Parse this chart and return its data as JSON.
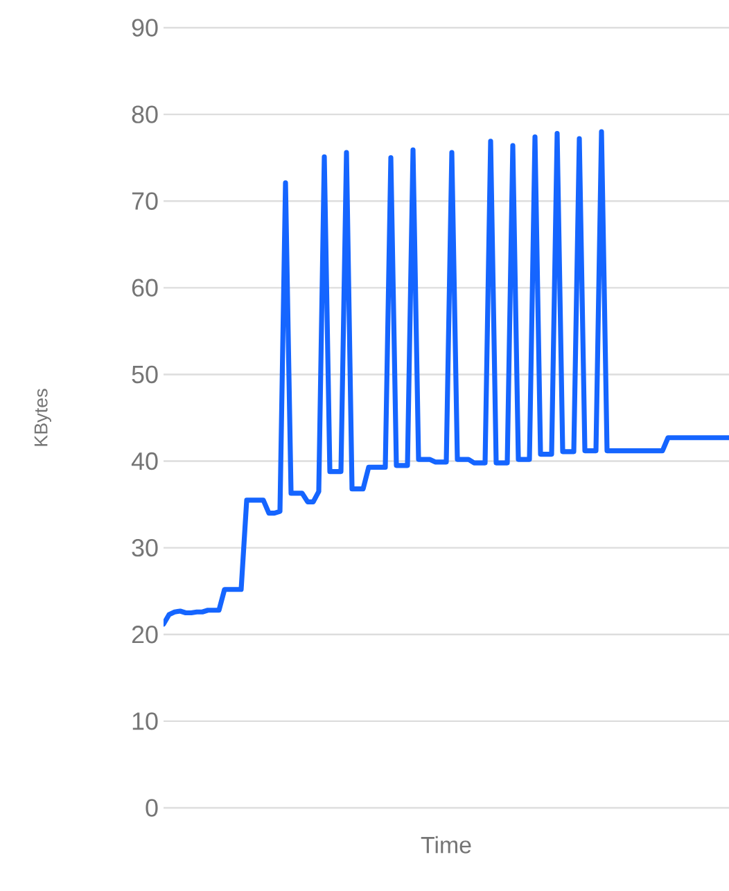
{
  "chart_data": {
    "type": "line",
    "xlabel": "Time",
    "ylabel": "KBytes",
    "categories": [
      null,
      null,
      null,
      null,
      null,
      null,
      null,
      null,
      null,
      null,
      null,
      null,
      null,
      null,
      null,
      null,
      null,
      null,
      null,
      null,
      null,
      null,
      null,
      null,
      null,
      null,
      null,
      null,
      null,
      null,
      null,
      null,
      null,
      null,
      null,
      null,
      null,
      null,
      null,
      null,
      null,
      null,
      null,
      null,
      null,
      null,
      null,
      null,
      null,
      null,
      null,
      null,
      null,
      null,
      null,
      null,
      null,
      null,
      null,
      null,
      null,
      null,
      null,
      null,
      null,
      null,
      null,
      null,
      null,
      null,
      null,
      null,
      null,
      null,
      null,
      null,
      null,
      null,
      null,
      null,
      null,
      null,
      null,
      null,
      null,
      null,
      null,
      null,
      null,
      null,
      null,
      null,
      null,
      null,
      null,
      null,
      null,
      null,
      null,
      null,
      null,
      null,
      null
    ],
    "series": [
      {
        "color": "#1565ff",
        "values": [
          21.2,
          22.3,
          22.6,
          22.7,
          22.5,
          22.5,
          22.6,
          22.6,
          22.8,
          22.8,
          22.8,
          25.2,
          25.2,
          25.2,
          25.2,
          35.5,
          35.5,
          35.5,
          35.5,
          34.0,
          34.0,
          34.2,
          72.1,
          36.3,
          36.3,
          36.3,
          35.3,
          35.3,
          36.5,
          75.1,
          38.8,
          38.8,
          38.8,
          75.6,
          36.8,
          36.8,
          36.8,
          39.3,
          39.3,
          39.3,
          39.3,
          75.0,
          39.5,
          39.5,
          39.5,
          75.9,
          40.2,
          40.2,
          40.2,
          39.9,
          39.9,
          39.9,
          75.6,
          40.2,
          40.2,
          40.2,
          39.8,
          39.8,
          39.8,
          76.9,
          39.8,
          39.8,
          39.8,
          76.4,
          40.2,
          40.2,
          40.2,
          77.4,
          40.8,
          40.8,
          40.8,
          77.8,
          41.1,
          41.1,
          41.1,
          77.2,
          41.2,
          41.2,
          41.2,
          78.0,
          41.2,
          41.2,
          41.2,
          41.2,
          41.2,
          41.2,
          41.2,
          41.2,
          41.2,
          41.2,
          41.2,
          42.7,
          42.7,
          42.7,
          42.7,
          42.7,
          42.7,
          42.7,
          42.7,
          42.7,
          42.7,
          42.7,
          42.7
        ]
      }
    ],
    "ylim": [
      0,
      90
    ],
    "yticks": [
      0,
      10,
      20,
      30,
      40,
      50,
      60,
      70,
      80,
      90
    ],
    "grid": "y",
    "marker": "none",
    "tick_labels": "y"
  }
}
